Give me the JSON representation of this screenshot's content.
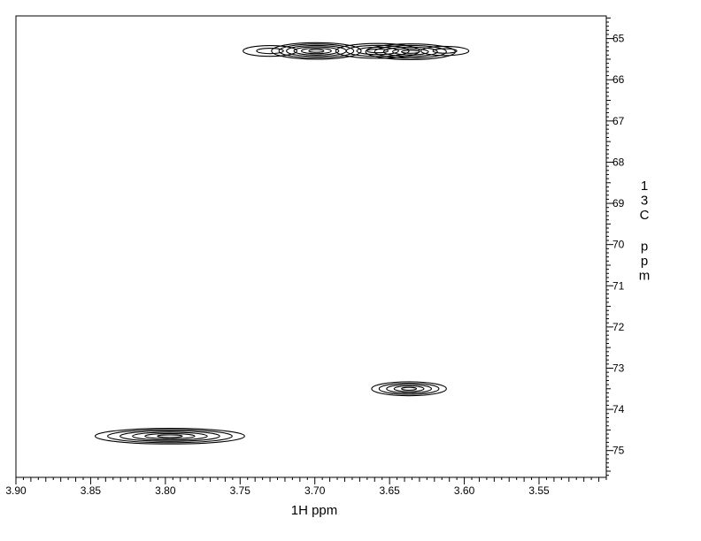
{
  "chart_data": {
    "type": "contour",
    "xlabel": "1H ppm",
    "ylabel": "13C ppm",
    "xlim": [
      3.9,
      3.505
    ],
    "ylim": [
      64.45,
      75.65
    ],
    "x_reversed": true,
    "y_reversed": true,
    "grid": false,
    "x_ticks": [
      3.9,
      3.85,
      3.8,
      3.75,
      3.7,
      3.65,
      3.6,
      3.55
    ],
    "x_tick_labels": [
      "3.90",
      "3.85",
      "3.80",
      "3.75",
      "3.70",
      "3.65",
      "3.60",
      "3.55"
    ],
    "y_ticks": [
      65,
      66,
      67,
      68,
      69,
      70,
      71,
      72,
      73,
      74,
      75
    ],
    "y_tick_labels": [
      "65",
      "66",
      "67",
      "68",
      "69",
      "70",
      "71",
      "72",
      "73",
      "74",
      "75"
    ],
    "peaks": [
      {
        "x": 3.73,
        "y": 65.3,
        "width_ppm": 0.018,
        "height_ppm": 0.26,
        "levels": 2
      },
      {
        "x": 3.699,
        "y": 65.3,
        "width_ppm": 0.03,
        "height_ppm": 0.4,
        "levels": 6
      },
      {
        "x": 3.658,
        "y": 65.3,
        "width_ppm": 0.028,
        "height_ppm": 0.36,
        "levels": 4
      },
      {
        "x": 3.636,
        "y": 65.32,
        "width_ppm": 0.03,
        "height_ppm": 0.38,
        "levels": 5
      },
      {
        "x": 3.613,
        "y": 65.3,
        "width_ppm": 0.016,
        "height_ppm": 0.22,
        "levels": 2
      },
      {
        "x": 3.637,
        "y": 73.5,
        "width_ppm": 0.025,
        "height_ppm": 0.34,
        "levels": 5
      },
      {
        "x": 3.797,
        "y": 74.65,
        "width_ppm": 0.05,
        "height_ppm": 0.38,
        "levels": 6
      }
    ]
  }
}
